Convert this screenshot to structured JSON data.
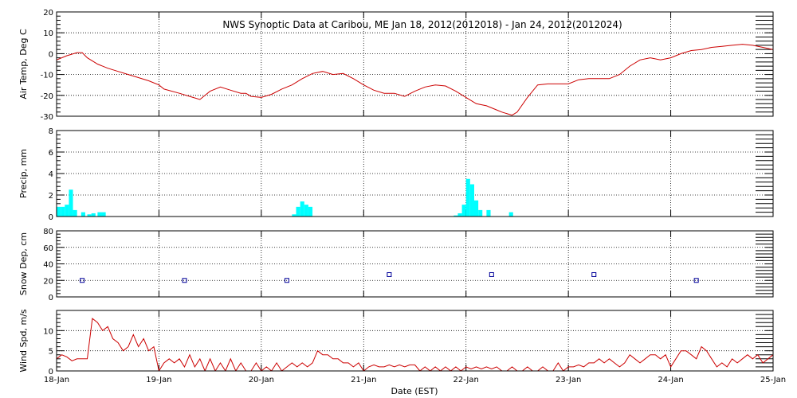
{
  "chart_data": {
    "title": "NWS Synoptic Data at Caribou, ME   Jan 18, 2012(2012018) - Jan 24, 2012(2012024)",
    "xlabel": "Date (EST)",
    "x_tick_labels": [
      "18-Jan",
      "19-Jan",
      "20-Jan",
      "21-Jan",
      "22-Jan",
      "23-Jan",
      "24-Jan",
      "25-Jan"
    ],
    "x_range_days": [
      0,
      7
    ],
    "grid": true,
    "panels": [
      {
        "key": "airtemp",
        "type": "line",
        "ylabel": "Air Temp, Deg C",
        "ylim": [
          -30,
          20
        ],
        "yticks": [
          -30,
          -20,
          -10,
          0,
          10,
          20
        ],
        "color": "#cc0000",
        "series": [
          {
            "x": [
              0,
              0.1,
              0.2,
              0.25,
              0.3,
              0.4,
              0.5,
              0.6,
              0.7,
              0.8,
              0.9,
              1.0,
              1.05,
              1.2,
              1.3,
              1.4,
              1.5,
              1.6,
              1.7,
              1.8,
              1.85,
              1.9,
              2.0,
              2.1,
              2.2,
              2.3,
              2.4,
              2.5,
              2.6,
              2.7,
              2.8,
              2.9,
              3.0,
              3.1,
              3.2,
              3.3,
              3.4,
              3.5,
              3.6,
              3.7,
              3.8,
              3.9,
              4.0,
              4.1,
              4.2,
              4.3,
              4.35,
              4.45,
              4.5,
              4.6,
              4.7,
              4.8,
              4.9,
              5.0,
              5.1,
              5.2,
              5.3,
              5.4,
              5.5,
              5.6,
              5.7,
              5.8,
              5.9,
              6.0,
              6.1,
              6.2,
              6.3,
              6.4,
              6.5,
              6.6,
              6.7,
              6.8,
              6.9,
              7.0
            ],
            "values": [
              -3,
              -1,
              0.5,
              0.5,
              -2,
              -5,
              -7,
              -8.5,
              -10,
              -11.5,
              -13,
              -15,
              -17,
              -19,
              -20.5,
              -22,
              -18,
              -16,
              -17.5,
              -19,
              -19,
              -20.5,
              -21,
              -19.5,
              -17,
              -15,
              -12,
              -9.5,
              -8.5,
              -10,
              -9.5,
              -12,
              -15,
              -17.5,
              -19,
              -19,
              -20.5,
              -18,
              -16,
              -15,
              -15.5,
              -18,
              -21,
              -24,
              -25,
              -27,
              -28,
              -29.5,
              -28,
              -21,
              -15,
              -14.5,
              -14.5,
              -14.5,
              -12.5,
              -12,
              -12,
              -12,
              -10,
              -6,
              -3,
              -2,
              -3,
              -2,
              0,
              1.5,
              2,
              3,
              3.5,
              4,
              4.5,
              4,
              3,
              2
            ]
          }
        ]
      },
      {
        "key": "precip",
        "type": "bar",
        "ylabel": "Precip, mm",
        "ylim": [
          0,
          8
        ],
        "yticks": [
          0,
          2,
          4,
          6,
          8
        ],
        "color": "#00ffff",
        "bar_width_days": 0.04,
        "series": [
          {
            "x": [
              0.0,
              0.04,
              0.08,
              0.12,
              0.16,
              0.2,
              0.24,
              0.3,
              0.34,
              0.4,
              0.44,
              0.48,
              0.52,
              2.3,
              2.34,
              2.38,
              2.42,
              2.46,
              2.5,
              2.54,
              2.58,
              3.88,
              3.92,
              3.96,
              4.0,
              4.04,
              4.08,
              4.12,
              4.2,
              4.42
            ],
            "values": [
              0.9,
              0.9,
              1.1,
              2.5,
              0.6,
              0,
              0.4,
              0.2,
              0.3,
              0.4,
              0.4,
              0,
              0,
              0.2,
              0.9,
              1.4,
              1.1,
              0.9,
              0,
              0,
              0,
              0.1,
              0.3,
              1.1,
              3.5,
              3.0,
              1.5,
              0.6,
              0.6,
              0.4
            ]
          }
        ]
      },
      {
        "key": "snowdepth",
        "type": "scatter",
        "ylabel": "Snow Dep, cm",
        "ylim": [
          0,
          80
        ],
        "yticks": [
          0,
          20,
          40,
          60,
          80
        ],
        "color": "#000099",
        "series": [
          {
            "x": [
              0.25,
              1.25,
              2.25,
              3.25,
              4.25,
              5.25,
              6.25
            ],
            "values": [
              20,
              20,
              20,
              27,
              27,
              27,
              20
            ]
          }
        ]
      },
      {
        "key": "windspd",
        "type": "line",
        "ylabel": "Wind Spd, m/s",
        "ylim": [
          0,
          15
        ],
        "yticks": [
          0,
          5,
          10
        ],
        "color": "#cc0000",
        "series": [
          {
            "x": [
              0,
              0.05,
              0.1,
              0.15,
              0.2,
              0.25,
              0.3,
              0.35,
              0.4,
              0.45,
              0.5,
              0.55,
              0.6,
              0.65,
              0.7,
              0.75,
              0.8,
              0.85,
              0.9,
              0.95,
              1.0,
              1.05,
              1.1,
              1.15,
              1.2,
              1.25,
              1.3,
              1.35,
              1.4,
              1.45,
              1.5,
              1.55,
              1.6,
              1.65,
              1.7,
              1.75,
              1.8,
              1.85,
              1.9,
              1.95,
              2.0,
              2.05,
              2.1,
              2.15,
              2.2,
              2.25,
              2.3,
              2.35,
              2.4,
              2.45,
              2.5,
              2.55,
              2.6,
              2.65,
              2.7,
              2.75,
              2.8,
              2.85,
              2.9,
              2.95,
              3.0,
              3.05,
              3.1,
              3.15,
              3.2,
              3.25,
              3.3,
              3.35,
              3.4,
              3.45,
              3.5,
              3.55,
              3.6,
              3.65,
              3.7,
              3.75,
              3.8,
              3.85,
              3.9,
              3.95,
              4.0,
              4.05,
              4.1,
              4.15,
              4.2,
              4.25,
              4.3,
              4.35,
              4.4,
              4.45,
              4.5,
              4.55,
              4.6,
              4.65,
              4.7,
              4.75,
              4.8,
              4.85,
              4.9,
              4.95,
              5.0,
              5.05,
              5.1,
              5.15,
              5.2,
              5.25,
              5.3,
              5.35,
              5.4,
              5.45,
              5.5,
              5.55,
              5.6,
              5.65,
              5.7,
              5.75,
              5.8,
              5.85,
              5.9,
              5.95,
              6.0,
              6.05,
              6.1,
              6.15,
              6.2,
              6.25,
              6.3,
              6.35,
              6.4,
              6.45,
              6.5,
              6.55,
              6.6,
              6.65,
              6.7,
              6.75,
              6.8,
              6.85,
              6.9,
              6.95,
              7.0
            ],
            "values": [
              3,
              4,
              3.5,
              2.5,
              3,
              3,
              3,
              13,
              12,
              10,
              11,
              8,
              7,
              5,
              6,
              9,
              6,
              8,
              5,
              6,
              0,
              2,
              3,
              2,
              3,
              1,
              4,
              1,
              3,
              0,
              3,
              0,
              2,
              0,
              3,
              0,
              2,
              0,
              0,
              2,
              0,
              1,
              0,
              2,
              0,
              1,
              2,
              1,
              2,
              1,
              2,
              5,
              4,
              4,
              3,
              3,
              2,
              2,
              1,
              2,
              0,
              1,
              1.5,
              1,
              1,
              1.5,
              1,
              1.5,
              1,
              1.5,
              1.5,
              0,
              1,
              0,
              1,
              0,
              1,
              0,
              1,
              0,
              1,
              0.5,
              1,
              0.5,
              1,
              0.5,
              1,
              0,
              0,
              1,
              0,
              0,
              1,
              0,
              0,
              1,
              0,
              0,
              2,
              0,
              1,
              1,
              1.5,
              1,
              2,
              2,
              3,
              2,
              3,
              2,
              1,
              2,
              4,
              3,
              2,
              3,
              4,
              4,
              3,
              4,
              1,
              3,
              5,
              5,
              4,
              3,
              6,
              5,
              3,
              1,
              2,
              1,
              3,
              2,
              3,
              4,
              3,
              4,
              2,
              3,
              4
            ]
          }
        ]
      }
    ]
  }
}
